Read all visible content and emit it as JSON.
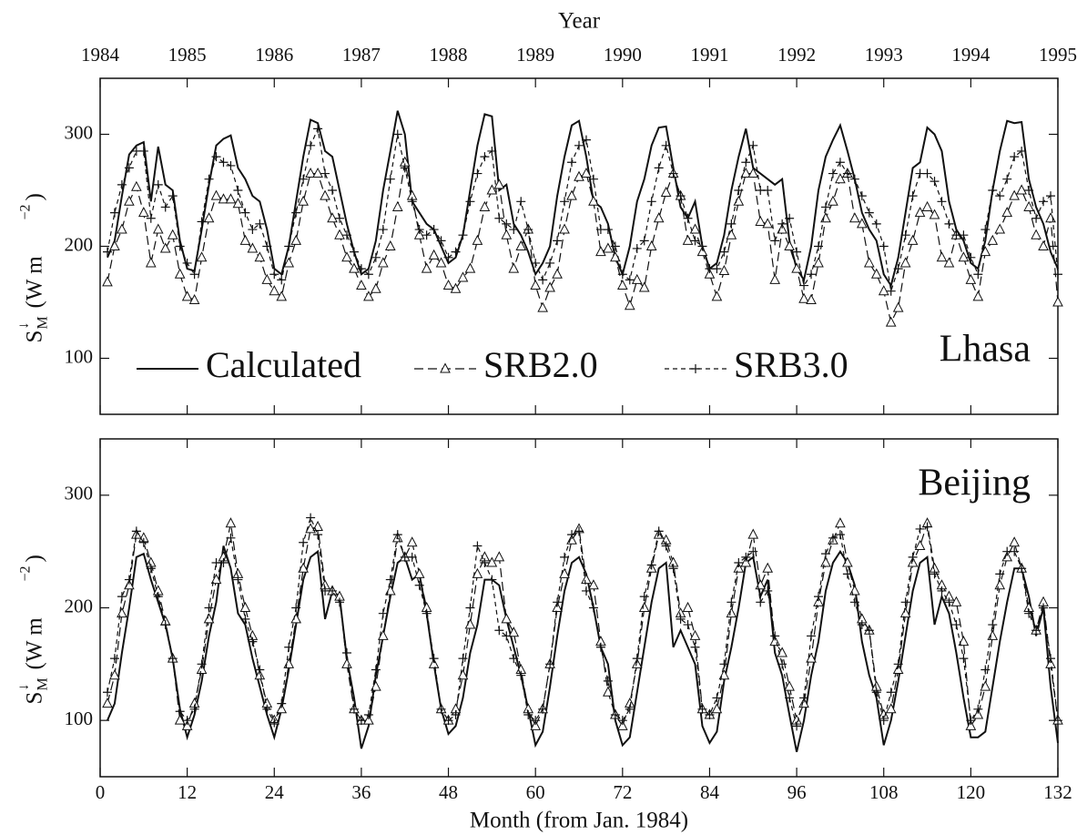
{
  "chart_data": [
    {
      "type": "line",
      "panel_label": "Lhasa",
      "x2label": "Year",
      "x2lim": [
        1984,
        1995
      ],
      "x2ticks": [
        1984,
        1985,
        1986,
        1987,
        1988,
        1989,
        1990,
        1991,
        1992,
        1993,
        1994,
        1995
      ],
      "ylabel_parts": [
        "S",
        "↓",
        "M",
        "(W  m",
        "−2",
        ")"
      ],
      "xlim": [
        0,
        132
      ],
      "xticks": [
        0,
        12,
        24,
        36,
        48,
        60,
        72,
        84,
        96,
        108,
        120,
        132
      ],
      "show_xtick_labels": false,
      "ylim": [
        50,
        350
      ],
      "yticks": [
        100,
        200,
        300
      ],
      "legend": "lower left",
      "x": [
        1,
        2,
        3,
        4,
        5,
        6,
        7,
        8,
        9,
        10,
        11,
        12,
        13,
        14,
        15,
        16,
        17,
        18,
        19,
        20,
        21,
        22,
        23,
        24,
        25,
        26,
        27,
        28,
        29,
        30,
        31,
        32,
        33,
        34,
        35,
        36,
        37,
        38,
        39,
        40,
        41,
        42,
        43,
        44,
        45,
        46,
        47,
        48,
        49,
        50,
        51,
        52,
        53,
        54,
        55,
        56,
        57,
        58,
        59,
        60,
        61,
        62,
        63,
        64,
        65,
        66,
        67,
        68,
        69,
        70,
        71,
        72,
        73,
        74,
        75,
        76,
        77,
        78,
        79,
        80,
        81,
        82,
        83,
        84,
        85,
        86,
        87,
        88,
        89,
        90,
        91,
        92,
        93,
        94,
        95,
        96,
        97,
        98,
        99,
        100,
        101,
        102,
        103,
        104,
        105,
        106,
        107,
        108,
        109,
        110,
        111,
        112,
        113,
        114,
        115,
        116,
        117,
        118,
        119,
        120,
        121,
        122,
        123,
        124,
        125,
        126,
        127,
        128,
        129,
        130,
        131,
        132
      ],
      "series": [
        {
          "name": "Calculated",
          "color": "#111111",
          "linestyle": "solid",
          "marker": null,
          "values": [
            190,
            205,
            245,
            282,
            290,
            293,
            240,
            289,
            255,
            250,
            205,
            180,
            178,
            215,
            255,
            290,
            296,
            299,
            270,
            260,
            245,
            240,
            215,
            180,
            175,
            200,
            240,
            280,
            313,
            310,
            285,
            280,
            250,
            220,
            195,
            175,
            180,
            205,
            250,
            285,
            321,
            300,
            240,
            230,
            220,
            215,
            200,
            185,
            190,
            210,
            250,
            290,
            318,
            316,
            250,
            255,
            220,
            210,
            195,
            175,
            185,
            200,
            245,
            280,
            308,
            312,
            280,
            240,
            235,
            220,
            190,
            175,
            200,
            240,
            260,
            290,
            306,
            307,
            270,
            235,
            225,
            240,
            200,
            180,
            185,
            210,
            250,
            280,
            305,
            270,
            265,
            260,
            255,
            260,
            205,
            180,
            170,
            200,
            250,
            280,
            295,
            308,
            285,
            260,
            230,
            215,
            205,
            175,
            165,
            190,
            230,
            270,
            275,
            306,
            300,
            285,
            240,
            215,
            205,
            185,
            180,
            205,
            250,
            285,
            312,
            310,
            311,
            260,
            235,
            220,
            195,
            180
          ]
        },
        {
          "name": "SRB2.0",
          "color": "#111111",
          "linestyle": "dashed",
          "marker": "triangle",
          "values": [
            168,
            200,
            215,
            240,
            253,
            230,
            185,
            215,
            198,
            210,
            175,
            155,
            152,
            190,
            225,
            245,
            242,
            242,
            238,
            205,
            198,
            190,
            170,
            160,
            155,
            185,
            205,
            240,
            265,
            265,
            245,
            225,
            210,
            190,
            180,
            165,
            155,
            162,
            185,
            200,
            235,
            275,
            245,
            210,
            180,
            192,
            185,
            165,
            162,
            172,
            180,
            205,
            235,
            250,
            255,
            210,
            180,
            200,
            215,
            165,
            145,
            163,
            175,
            215,
            245,
            262,
            265,
            240,
            195,
            198,
            190,
            165,
            147,
            170,
            163,
            200,
            225,
            248,
            265,
            245,
            205,
            215,
            195,
            175,
            155,
            178,
            210,
            240,
            265,
            265,
            222,
            220,
            170,
            215,
            200,
            180,
            153,
            152,
            185,
            225,
            240,
            260,
            265,
            225,
            220,
            185,
            175,
            160,
            132,
            145,
            185,
            205,
            230,
            235,
            228,
            190,
            185,
            210,
            190,
            170,
            155,
            195,
            205,
            215,
            230,
            245,
            250,
            235,
            210,
            200,
            225,
            150
          ]
        },
        {
          "name": "SRB3.0",
          "color": "#111111",
          "linestyle": "dotted",
          "marker": "plus",
          "values": [
            195,
            230,
            255,
            270,
            285,
            285,
            225,
            255,
            235,
            245,
            200,
            185,
            175,
            222,
            260,
            280,
            275,
            272,
            250,
            230,
            215,
            220,
            200,
            175,
            170,
            200,
            230,
            260,
            290,
            305,
            265,
            250,
            225,
            210,
            195,
            180,
            175,
            190,
            215,
            260,
            300,
            270,
            240,
            215,
            210,
            215,
            205,
            190,
            195,
            210,
            240,
            265,
            280,
            285,
            225,
            220,
            215,
            240,
            215,
            185,
            170,
            185,
            205,
            240,
            275,
            290,
            295,
            260,
            215,
            215,
            200,
            175,
            170,
            198,
            205,
            240,
            270,
            290,
            265,
            245,
            225,
            205,
            200,
            180,
            180,
            195,
            220,
            250,
            275,
            290,
            250,
            250,
            205,
            220,
            225,
            195,
            165,
            175,
            200,
            235,
            265,
            275,
            265,
            260,
            245,
            230,
            220,
            200,
            160,
            180,
            210,
            245,
            265,
            265,
            258,
            240,
            220,
            210,
            210,
            190,
            175,
            215,
            250,
            245,
            260,
            280,
            285,
            250,
            225,
            240,
            245,
            175
          ]
        }
      ]
    },
    {
      "type": "line",
      "panel_label": "Beijing",
      "xlabel": "Month  (from  Jan.  1984)",
      "ylabel_parts": [
        "S",
        "↓",
        "M",
        "(W  m",
        "−2",
        ")"
      ],
      "xlim": [
        0,
        132
      ],
      "xticks": [
        0,
        12,
        24,
        36,
        48,
        60,
        72,
        84,
        96,
        108,
        120,
        132
      ],
      "show_xtick_labels": true,
      "ylim": [
        50,
        350
      ],
      "yticks": [
        100,
        200,
        300
      ],
      "x": [
        1,
        2,
        3,
        4,
        5,
        6,
        7,
        8,
        9,
        10,
        11,
        12,
        13,
        14,
        15,
        16,
        17,
        18,
        19,
        20,
        21,
        22,
        23,
        24,
        25,
        26,
        27,
        28,
        29,
        30,
        31,
        32,
        33,
        34,
        35,
        36,
        37,
        38,
        39,
        40,
        41,
        42,
        43,
        44,
        45,
        46,
        47,
        48,
        49,
        50,
        51,
        52,
        53,
        54,
        55,
        56,
        57,
        58,
        59,
        60,
        61,
        62,
        63,
        64,
        65,
        66,
        67,
        68,
        69,
        70,
        71,
        72,
        73,
        74,
        75,
        76,
        77,
        78,
        79,
        80,
        81,
        82,
        83,
        84,
        85,
        86,
        87,
        88,
        89,
        90,
        91,
        92,
        93,
        94,
        95,
        96,
        97,
        98,
        99,
        100,
        101,
        102,
        103,
        104,
        105,
        106,
        107,
        108,
        109,
        110,
        111,
        112,
        113,
        114,
        115,
        116,
        117,
        118,
        119,
        120,
        121,
        122,
        123,
        124,
        125,
        126,
        127,
        128,
        129,
        130,
        131,
        132
      ],
      "series": [
        {
          "name": "Calculated",
          "color": "#111111",
          "linestyle": "solid",
          "marker": null,
          "values": [
            100,
            115,
            160,
            200,
            245,
            248,
            225,
            205,
            185,
            155,
            110,
            85,
            105,
            135,
            175,
            205,
            255,
            235,
            195,
            185,
            155,
            130,
            105,
            85,
            110,
            145,
            185,
            225,
            245,
            250,
            190,
            215,
            210,
            155,
            120,
            75,
            95,
            140,
            175,
            210,
            240,
            245,
            225,
            230,
            195,
            150,
            110,
            88,
            95,
            120,
            160,
            185,
            225,
            225,
            220,
            190,
            165,
            140,
            110,
            78,
            90,
            130,
            175,
            215,
            240,
            245,
            230,
            200,
            165,
            150,
            100,
            78,
            85,
            125,
            165,
            205,
            235,
            240,
            165,
            180,
            165,
            150,
            95,
            80,
            90,
            135,
            165,
            200,
            240,
            245,
            210,
            225,
            160,
            140,
            105,
            72,
            100,
            140,
            170,
            215,
            240,
            250,
            240,
            220,
            170,
            140,
            120,
            78,
            100,
            135,
            175,
            215,
            240,
            245,
            185,
            210,
            195,
            160,
            120,
            85,
            85,
            90,
            130,
            170,
            205,
            235,
            235,
            210,
            175,
            200,
            130,
            80
          ]
        },
        {
          "name": "SRB2.0",
          "color": "#111111",
          "linestyle": "dashed",
          "marker": "triangle",
          "values": [
            115,
            140,
            195,
            220,
            265,
            262,
            240,
            215,
            188,
            155,
            100,
            95,
            115,
            145,
            190,
            225,
            245,
            275,
            230,
            200,
            175,
            140,
            115,
            100,
            110,
            150,
            190,
            235,
            270,
            272,
            220,
            215,
            210,
            150,
            110,
            100,
            100,
            130,
            175,
            215,
            262,
            245,
            258,
            230,
            200,
            150,
            110,
            100,
            110,
            140,
            185,
            230,
            245,
            240,
            245,
            190,
            178,
            145,
            110,
            95,
            110,
            150,
            200,
            230,
            260,
            270,
            225,
            220,
            170,
            125,
            105,
            95,
            115,
            150,
            200,
            235,
            265,
            260,
            240,
            195,
            200,
            175,
            110,
            105,
            110,
            140,
            195,
            235,
            240,
            265,
            220,
            235,
            170,
            160,
            130,
            100,
            115,
            155,
            205,
            240,
            260,
            275,
            240,
            215,
            190,
            180,
            130,
            105,
            110,
            145,
            195,
            240,
            255,
            275,
            235,
            220,
            210,
            205,
            170,
            95,
            105,
            130,
            175,
            220,
            245,
            258,
            235,
            200,
            180,
            205,
            150,
            100
          ]
        },
        {
          "name": "SRB3.0",
          "color": "#111111",
          "linestyle": "dotted",
          "marker": "plus",
          "values": [
            125,
            155,
            210,
            225,
            268,
            258,
            235,
            210,
            185,
            155,
            108,
            100,
            110,
            150,
            200,
            240,
            240,
            262,
            225,
            190,
            170,
            145,
            110,
            98,
            115,
            165,
            200,
            258,
            280,
            265,
            215,
            215,
            205,
            160,
            110,
            100,
            105,
            145,
            195,
            225,
            265,
            245,
            245,
            220,
            195,
            155,
            110,
            100,
            105,
            155,
            200,
            255,
            240,
            225,
            180,
            175,
            155,
            140,
            105,
            100,
            110,
            150,
            205,
            245,
            265,
            268,
            215,
            200,
            165,
            135,
            105,
            100,
            110,
            155,
            210,
            238,
            268,
            255,
            235,
            190,
            185,
            165,
            110,
            105,
            120,
            150,
            205,
            240,
            245,
            250,
            205,
            215,
            175,
            150,
            120,
            95,
            120,
            175,
            210,
            248,
            262,
            265,
            230,
            205,
            185,
            180,
            125,
            100,
            125,
            150,
            205,
            245,
            270,
            272,
            230,
            215,
            205,
            185,
            155,
            100,
            110,
            145,
            185,
            230,
            250,
            250,
            235,
            195,
            180,
            200,
            155,
            100
          ]
        }
      ]
    }
  ]
}
